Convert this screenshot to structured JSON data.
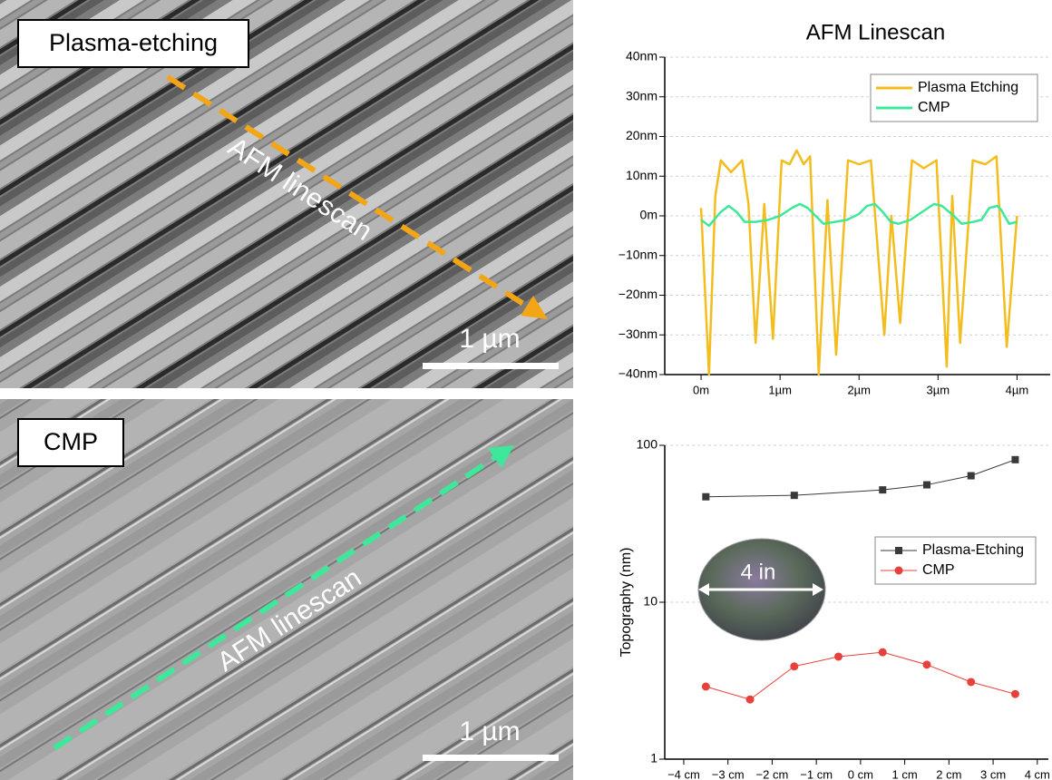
{
  "panels": [
    {
      "label": "Plasma-etching",
      "annotation": "AFM  linescan",
      "scale_bar": "1 µm"
    },
    {
      "label": "CMP",
      "annotation": "AFM  linescan",
      "scale_bar": "1 µm"
    }
  ],
  "chart_data": [
    {
      "type": "line",
      "title": "AFM Linescan",
      "xlim": [
        -0.46,
        4.42
      ],
      "ylim": [
        -40,
        40
      ],
      "xticks": [
        {
          "value": 0,
          "label": "0m"
        },
        {
          "value": 1,
          "label": "1µm"
        },
        {
          "value": 2,
          "label": "2µm"
        },
        {
          "value": 3,
          "label": "3µm"
        },
        {
          "value": 4,
          "label": "4µm"
        }
      ],
      "yticks": [
        {
          "value": -40,
          "label": "−40nm"
        },
        {
          "value": -30,
          "label": "−30nm"
        },
        {
          "value": -20,
          "label": "−20nm"
        },
        {
          "value": -10,
          "label": "−10nm"
        },
        {
          "value": 0,
          "label": "0m"
        },
        {
          "value": 10,
          "label": "10nm"
        },
        {
          "value": 20,
          "label": "20nm"
        },
        {
          "value": 30,
          "label": "30nm"
        },
        {
          "value": 40,
          "label": "40nm"
        }
      ],
      "grid": true,
      "legend": "upper right",
      "series": [
        {
          "name": "Plasma Etching",
          "color": "#f2bd1d",
          "x": [
            0,
            0.1,
            0.18,
            0.25,
            0.38,
            0.52,
            0.6,
            0.69,
            0.8,
            0.91,
            1.02,
            1.12,
            1.21,
            1.3,
            1.38,
            1.49,
            1.6,
            1.71,
            1.86,
            2.0,
            2.15,
            2.32,
            2.41,
            2.52,
            2.67,
            2.82,
            2.98,
            3.11,
            3.18,
            3.28,
            3.44,
            3.6,
            3.74,
            3.87,
            4.0
          ],
          "values": [
            2,
            -40,
            5,
            14,
            11,
            14,
            3,
            -32,
            3,
            -31,
            14,
            13,
            16.5,
            13,
            15,
            -40,
            4,
            -35,
            14,
            13,
            14,
            -30,
            0,
            -27,
            14,
            12,
            14,
            -38,
            5,
            -32,
            14,
            13,
            15,
            -33,
            0
          ]
        },
        {
          "name": "CMP",
          "color": "#3ee89a",
          "x": [
            0,
            0.1,
            0.25,
            0.35,
            0.45,
            0.55,
            0.7,
            0.85,
            1.0,
            1.15,
            1.25,
            1.35,
            1.45,
            1.55,
            1.7,
            1.85,
            2.0,
            2.1,
            2.2,
            2.3,
            2.4,
            2.5,
            2.65,
            2.8,
            2.95,
            3.05,
            3.2,
            3.3,
            3.45,
            3.55,
            3.65,
            3.75,
            3.8,
            3.9,
            4.0
          ],
          "values": [
            -1,
            -2.5,
            1,
            2.5,
            1,
            -1.5,
            -1.5,
            -1,
            0,
            2,
            3,
            2,
            0,
            -2,
            -1.5,
            -1,
            0.5,
            2.5,
            3,
            1,
            -1.5,
            -2,
            -1,
            1,
            3,
            2.5,
            0,
            -2,
            -1.5,
            -1,
            2,
            2.5,
            1.5,
            -2,
            -1.5
          ]
        }
      ]
    },
    {
      "type": "line",
      "y_label": "Topography (nm)",
      "log_y": true,
      "xlim": [
        -4.43,
        4.25
      ],
      "ylim": [
        1,
        100
      ],
      "xticks": [
        {
          "value": -4,
          "label": "−4 cm"
        },
        {
          "value": -3,
          "label": "−3 cm"
        },
        {
          "value": -2,
          "label": "−2 cm"
        },
        {
          "value": -1,
          "label": "−1 cm"
        },
        {
          "value": 0,
          "label": "0 cm"
        },
        {
          "value": 1,
          "label": "1 cm"
        },
        {
          "value": 2,
          "label": "2 cm"
        },
        {
          "value": 3,
          "label": "3 cm"
        },
        {
          "value": 4,
          "label": "4 cm"
        }
      ],
      "yticks": [
        1,
        10,
        100
      ],
      "grid": true,
      "legend": "right",
      "annotations": [
        "4 in"
      ],
      "series": [
        {
          "name": "Plasma-Etching",
          "color": "#3a3a3a",
          "marker": "square",
          "x": [
            -3.5,
            -1.5,
            0.5,
            1.5,
            2.5,
            3.5
          ],
          "values": [
            47,
            48,
            52,
            56,
            64,
            81
          ]
        },
        {
          "name": "CMP",
          "color": "#e8413c",
          "marker": "circle",
          "x": [
            -3.5,
            -2.5,
            -1.5,
            -0.5,
            0.5,
            1.5,
            2.5,
            3.5
          ],
          "values": [
            2.9,
            2.4,
            3.9,
            4.5,
            4.8,
            4.0,
            3.1,
            2.6
          ]
        }
      ]
    }
  ]
}
